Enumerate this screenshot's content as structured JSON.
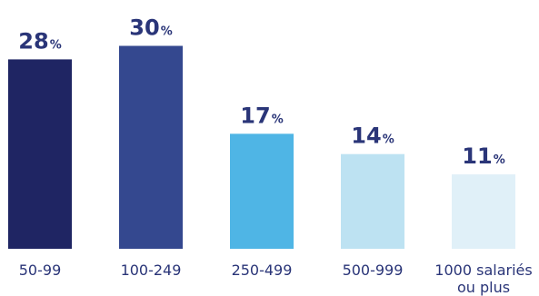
{
  "chart_data": {
    "type": "bar",
    "title": "",
    "xlabel": "",
    "ylabel": "",
    "ylim": [
      0,
      30
    ],
    "grid": false,
    "value_suffix": "%",
    "categories": [
      [
        "50-99"
      ],
      [
        "100-249"
      ],
      [
        "250-499"
      ],
      [
        "500-999"
      ],
      [
        "1000 salariés",
        "ou plus"
      ]
    ],
    "values": [
      28,
      30,
      17,
      14,
      11
    ],
    "colors": [
      "#1f2563",
      "#34488f",
      "#4fb5e5",
      "#bde2f2",
      "#e0f0f8"
    ]
  }
}
